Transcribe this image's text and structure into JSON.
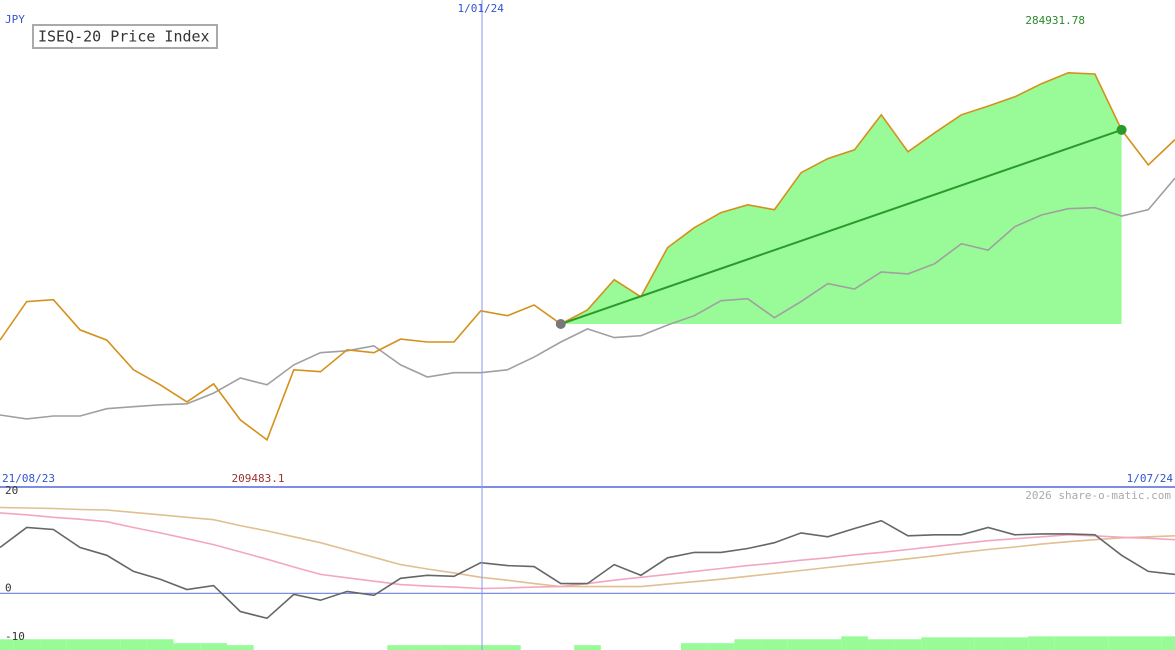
{
  "chart_data": [
    {
      "type": "line",
      "title": "ISEQ-20 Price Index",
      "currency": "JPY",
      "categories": [
        "21/08/23",
        null,
        null,
        null,
        null,
        null,
        null,
        null,
        null,
        null,
        null,
        null,
        null,
        null,
        null,
        null,
        null,
        null,
        "1/01/24",
        null,
        null,
        null,
        null,
        null,
        null,
        null,
        null,
        null,
        null,
        null,
        null,
        null,
        null,
        null,
        null,
        null,
        null,
        null,
        null,
        null,
        null,
        null,
        null,
        null,
        "1/07/24"
      ],
      "series": [
        {
          "color": "#d4901a",
          "values": [
            230000,
            237900,
            238300,
            232100,
            230000,
            223900,
            220800,
            217300,
            221000,
            213600,
            209483.1,
            223900,
            223500,
            228000,
            227400,
            230200,
            229600,
            229600,
            236000,
            235000,
            237200,
            233300,
            236200,
            242400,
            238900,
            249000,
            253100,
            256200,
            257800,
            256800,
            264400,
            267300,
            269100,
            276300,
            268700,
            272600,
            276300,
            278100,
            280000,
            282700,
            284931.78,
            284700,
            273200,
            266000,
            271200
          ]
        },
        {
          "color": "#a0a0a0",
          "values": [
            214600,
            213800,
            214400,
            214400,
            215900,
            216300,
            216700,
            216900,
            219100,
            222200,
            220800,
            224900,
            227400,
            227800,
            228800,
            224900,
            222400,
            223300,
            223300,
            223900,
            226500,
            229600,
            232300,
            230500,
            230900,
            233100,
            235000,
            238100,
            238500,
            234600,
            237900,
            241600,
            240500,
            244000,
            243600,
            245700,
            249800,
            248500,
            253300,
            255700,
            257000,
            257200,
            255500,
            256800,
            263300
          ]
        }
      ],
      "max": 284931.78,
      "max_color": "#2a8a2a",
      "min": 209483.1,
      "min_color": "#993333",
      "highlight": {
        "from": 21,
        "to": 42,
        "fill": "#98fb98",
        "line_color": "#2a9a2a",
        "start_color": "#777777",
        "end_color": "#2a9a2a"
      },
      "ylim": [
        199800,
        299900
      ]
    },
    {
      "type": "line",
      "watermark": "2026 share-o-matic.com",
      "ylim": [
        -11.6,
        21.6
      ],
      "yticks": [
        20,
        0,
        -10
      ],
      "zero_line_color": "#7b8ee8",
      "series": [
        {
          "color": "#666666",
          "values": [
            9.4,
            13.5,
            13.1,
            9.4,
            7.8,
            4.5,
            2.9,
            0.8,
            1.6,
            -3.7,
            -5.1,
            -0.2,
            -1.4,
            0.4,
            -0.4,
            3.1,
            3.7,
            3.5,
            6.3,
            5.7,
            5.5,
            2.0,
            2.0,
            5.9,
            3.7,
            7.3,
            8.4,
            8.4,
            9.2,
            10.4,
            12.4,
            11.6,
            13.3,
            14.9,
            11.8,
            12.0,
            12.0,
            13.5,
            12.0,
            12.2,
            12.2,
            12.0,
            7.8,
            4.5,
            3.9
          ]
        },
        {
          "color": "#f4a6c0",
          "values": [
            16.5,
            16.1,
            15.6,
            15.2,
            14.7,
            13.5,
            12.4,
            11.2,
            10.0,
            8.5,
            7.0,
            5.4,
            3.9,
            3.2,
            2.5,
            1.8,
            1.5,
            1.3,
            1.0,
            1.1,
            1.3,
            1.4,
            2.0,
            2.7,
            3.3,
            3.9,
            4.5,
            5.1,
            5.7,
            6.2,
            6.8,
            7.3,
            7.9,
            8.4,
            9.0,
            9.6,
            10.2,
            10.8,
            11.2,
            11.6,
            12.0,
            11.8,
            11.5,
            11.3,
            11.0
          ]
        },
        {
          "color": "#e0c090",
          "values": [
            17.6,
            17.5,
            17.4,
            17.2,
            17.1,
            16.6,
            16.1,
            15.6,
            15.1,
            13.9,
            12.8,
            11.6,
            10.4,
            8.9,
            7.4,
            5.9,
            5.0,
            4.2,
            3.3,
            2.7,
            2.0,
            1.4,
            1.4,
            1.4,
            1.4,
            1.9,
            2.4,
            2.9,
            3.5,
            4.1,
            4.7,
            5.3,
            5.9,
            6.5,
            7.1,
            7.7,
            8.4,
            9.0,
            9.5,
            10.1,
            10.6,
            11.0,
            11.4,
            11.6,
            11.8
          ]
        }
      ],
      "bars": {
        "color": "#98fb98",
        "values": [
          -9.4,
          -9.4,
          -9.4,
          -9.4,
          -9.4,
          -9.4,
          -9.4,
          -10.2,
          -10.2,
          -10.6,
          null,
          null,
          null,
          null,
          null,
          -10.6,
          -10.6,
          -10.6,
          -10.6,
          -10.6,
          null,
          null,
          -10.6,
          null,
          null,
          null,
          -10.2,
          -10.2,
          -9.4,
          -9.4,
          -9.4,
          -9.4,
          -8.8,
          -9.4,
          -9.4,
          -9.0,
          -9.0,
          -9.0,
          -9.0,
          -8.8,
          -8.8,
          -8.8,
          -8.8,
          -8.8,
          -8.8
        ]
      }
    }
  ]
}
